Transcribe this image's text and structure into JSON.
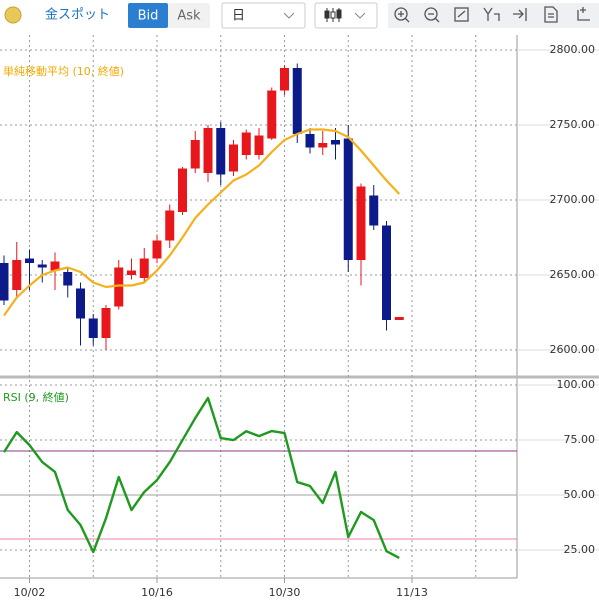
{
  "toolbar": {
    "instrument": "金スポット",
    "bid": "Bid",
    "ask": "Ask",
    "period": "日"
  },
  "chart_data": [
    {
      "type": "candlestick",
      "categories": [
        null,
        null,
        "10/02",
        null,
        null,
        null,
        null,
        null,
        null,
        null,
        null,
        null,
        "10/16",
        null,
        null,
        null,
        null,
        null,
        null,
        null,
        null,
        null,
        "10/30",
        null,
        null,
        null,
        null,
        null,
        null,
        null,
        null,
        null,
        "11/13"
      ],
      "open": [
        2658,
        2640,
        2661,
        2657,
        2653,
        2652,
        2641,
        2621,
        2608,
        2629,
        2650,
        2648,
        2661,
        2673,
        2692,
        2721,
        2718,
        2748,
        2719,
        2730,
        2730,
        2741,
        2773,
        2788,
        2744,
        2735,
        2740,
        2741,
        2660,
        2703,
        2683,
        2620,
        null
      ],
      "high": [
        2663,
        2672,
        2667,
        2660,
        2665,
        2655,
        2645,
        2624,
        2630,
        2660,
        2661,
        2668,
        2677,
        2697,
        2722,
        2746,
        2750,
        2752,
        2740,
        2747,
        2748,
        2775,
        2790,
        2791,
        2748,
        2746,
        2748,
        2750,
        2711,
        2710,
        2686,
        2622,
        null
      ],
      "low": [
        2630,
        2635,
        2640,
        2645,
        2640,
        2635,
        2603,
        2603,
        2600,
        2627,
        2647,
        2645,
        2658,
        2668,
        2690,
        2718,
        2712,
        2710,
        2716,
        2727,
        2727,
        2740,
        2770,
        2738,
        2731,
        2730,
        2727,
        2652,
        2643,
        2680,
        2613,
        2620,
        null
      ],
      "close": [
        2633,
        2660,
        2658,
        2655,
        2659,
        2643,
        2621,
        2608,
        2628,
        2655,
        2653,
        2661,
        2673,
        2693,
        2721,
        2740,
        2748,
        2717,
        2737,
        2745,
        2743,
        2773,
        2788,
        2744,
        2735,
        2738,
        2737,
        2660,
        2709,
        2683,
        2620,
        2622,
        null
      ],
      "up_color": "#e8171c",
      "down_color": "#0d1b8a",
      "series": [
        {
          "name": "単純移動平均 (10, 終値)",
          "color": "#f5b01a",
          "values": [
            2623,
            2635,
            2643,
            2650,
            2653,
            2655,
            2652,
            2645,
            2642,
            2643,
            2643,
            2645,
            2653,
            2663,
            2675,
            2688,
            2697,
            2705,
            2713,
            2717,
            2723,
            2732,
            2740,
            2744,
            2747,
            2747,
            2746,
            2742,
            2733,
            2723,
            2713,
            2704,
            null
          ]
        }
      ],
      "ylim": [
        2583.33,
        2810
      ],
      "yticks": [
        {
          "value": 2600,
          "label": "2600.00"
        },
        {
          "value": 2650,
          "label": "2650.00"
        },
        {
          "value": 2700,
          "label": "2700.00"
        },
        {
          "value": 2750,
          "label": "2750.00"
        },
        {
          "value": 2800,
          "label": "2800.00"
        }
      ],
      "grid": true
    },
    {
      "type": "line",
      "series": [
        {
          "name": "RSI (9, 終値)",
          "color": "#1e9a1e",
          "values": [
            69.5,
            78.6,
            72.7,
            65,
            60.5,
            43.2,
            36.4,
            24.1,
            39.5,
            58.2,
            43.2,
            51.4,
            56.8,
            65,
            75,
            85,
            94.1,
            75.9,
            75,
            79,
            76.8,
            79.1,
            78.2,
            55.9,
            54.1,
            46.4,
            60.5,
            30.9,
            42.3,
            38.6,
            24.5,
            21.4,
            null
          ]
        }
      ],
      "levels": [
        {
          "value": 70,
          "color": "#8e3a8e"
        },
        {
          "value": 50,
          "color": "#a0a0a0"
        },
        {
          "value": 30,
          "color": "#f07cb0"
        }
      ],
      "ylim": [
        12.3,
        102.3
      ],
      "yticks": [
        {
          "value": 25,
          "label": "25.00"
        },
        {
          "value": 50,
          "label": "50.00"
        },
        {
          "value": 75,
          "label": "75.00"
        },
        {
          "value": 100,
          "label": "100.00"
        }
      ],
      "grid": true
    }
  ]
}
